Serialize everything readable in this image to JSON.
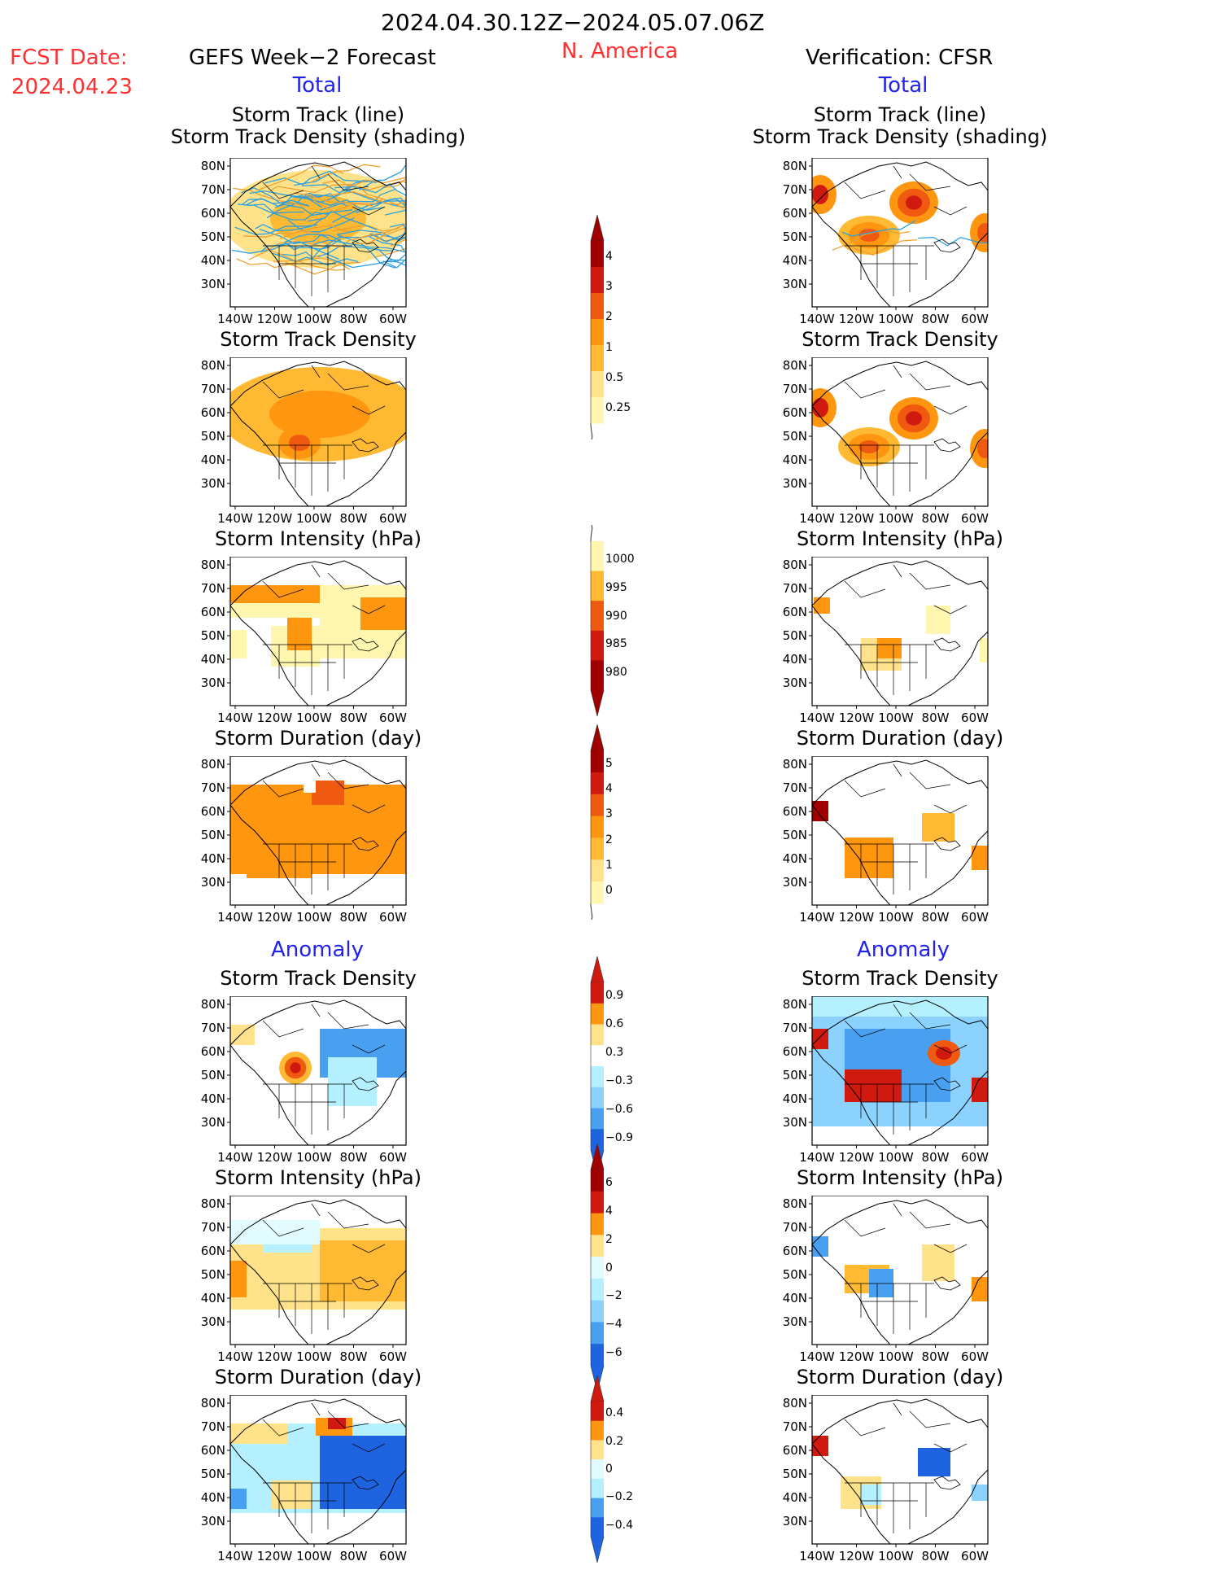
{
  "header": {
    "period": "2024.04.30.12Z−2024.05.07.06Z",
    "fcst_label": "FCST Date:",
    "fcst_date": "2024.04.23",
    "left_title": "GEFS Week−2 Forecast",
    "region": "N. America",
    "right_title": "Verification: CFSR"
  },
  "sections": {
    "total": "Total",
    "anomaly": "Anomaly"
  },
  "panel_titles": {
    "track": [
      "Storm Track (line)",
      "Storm Track Density (shading)"
    ],
    "density": "Storm Track Density",
    "intensity": "Storm Intensity (hPa)",
    "duration": "Storm Duration (day)"
  },
  "axes": {
    "lat_ticks": [
      "80N",
      "70N",
      "60N",
      "50N",
      "40N",
      "30N"
    ],
    "lon_ticks": [
      "140W",
      "120W",
      "100W",
      "80W",
      "60W"
    ]
  },
  "colorbars": {
    "density_total": [
      "4",
      "3",
      "2",
      "1",
      "0.5",
      "0.25"
    ],
    "intensity_total": [
      "1000",
      "995",
      "990",
      "985",
      "980"
    ],
    "duration_total": [
      "5",
      "4",
      "3",
      "2",
      "1",
      "0"
    ],
    "density_anom": [
      "0.9",
      "0.6",
      "0.3",
      "−0.3",
      "−0.6",
      "−0.9"
    ],
    "intensity_anom": [
      "6",
      "4",
      "2",
      "0",
      "−2",
      "−4",
      "−6"
    ],
    "duration_anom": [
      "0.4",
      "0.2",
      "0",
      "−0.2",
      "−0.4"
    ]
  },
  "colors": {
    "title_red": "#ff3030",
    "section_blue": "#2222ee",
    "track_line": "#2aa0e0",
    "track_line2": "#f0a030",
    "warm": [
      "#fff7b0",
      "#ffe28a",
      "#ffb932",
      "#ff9610",
      "#f05a10",
      "#d01a10",
      "#a00000"
    ],
    "cool": [
      "#e2fbff",
      "#b4f0ff",
      "#8cd2ff",
      "#4aa0f0",
      "#1e64e0"
    ]
  }
}
